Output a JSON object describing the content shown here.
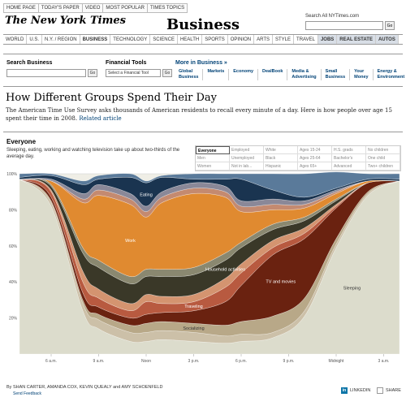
{
  "top_links": [
    "HOME PAGE",
    "TODAY'S PAPER",
    "VIDEO",
    "MOST POPULAR",
    "TIMES TOPICS"
  ],
  "logo": "The New York Times",
  "section": "Business",
  "search_all": {
    "label": "Search All NYTimes.com",
    "go": "Go"
  },
  "nav": [
    {
      "label": "WORLD",
      "style": "normal"
    },
    {
      "label": "U.S.",
      "style": "normal"
    },
    {
      "label": "N.Y. / REGION",
      "style": "normal"
    },
    {
      "label": "BUSINESS",
      "style": "active"
    },
    {
      "label": "TECHNOLOGY",
      "style": "normal"
    },
    {
      "label": "SCIENCE",
      "style": "normal"
    },
    {
      "label": "HEALTH",
      "style": "normal"
    },
    {
      "label": "SPORTS",
      "style": "normal"
    },
    {
      "label": "OPINION",
      "style": "normal"
    },
    {
      "label": "ARTS",
      "style": "normal"
    },
    {
      "label": "STYLE",
      "style": "normal"
    },
    {
      "label": "TRAVEL",
      "style": "normal"
    },
    {
      "label": "JOBS",
      "style": "dark"
    },
    {
      "label": "REAL ESTATE",
      "style": "dark"
    },
    {
      "label": "AUTOS",
      "style": "dark"
    }
  ],
  "subnav": {
    "search_business": "Search Business",
    "search_go": "Go",
    "financial_tools": "Financial Tools",
    "financial_select": "Select a Financial Tool",
    "financial_go": "Go",
    "more_in": "More in Business »",
    "links": [
      [
        "Global",
        "Business"
      ],
      [
        "Markets"
      ],
      [
        "Economy"
      ],
      [
        "DealBook"
      ],
      [
        "Media &",
        "Advertising"
      ],
      [
        "Small",
        "Business"
      ],
      [
        "Your",
        "Money"
      ],
      [
        "Energy &",
        "Environment"
      ]
    ]
  },
  "headline": "How Different Groups Spend Their Day",
  "deck": "The American Time Use Survey asks thousands of American residents to recall every minute of a day. Here is how people over age 15 spent their time in 2008.",
  "deck_link": "Related article",
  "group": {
    "title": "Everyone",
    "description": "Sleeping, eating, working and watching television take up about two-thirds of the average day."
  },
  "filters": [
    "Everyone",
    "Employed",
    "White",
    "Ages 15-24",
    "H.S. grads",
    "No children",
    "Men",
    "Unemployed",
    "Black",
    "Ages 25-64",
    "Bachelor's",
    "One child",
    "Women",
    "Not in lab...",
    "Hispanic",
    "Ages 65+",
    "Advanced",
    "Two+ children"
  ],
  "selected_filter": "Everyone",
  "chart_data": {
    "type": "area",
    "stacked": true,
    "y_ticks": [
      "100%",
      "80%",
      "60%",
      "40%",
      "20%"
    ],
    "x_ticks": [
      "6 a.m.",
      "9 a.m.",
      "Noon",
      "3 p.m.",
      "6 p.m.",
      "9 p.m.",
      "Midnight",
      "3 a.m."
    ],
    "x": [
      4,
      6,
      8,
      9,
      11,
      12,
      13,
      15,
      17,
      18,
      20,
      22,
      24,
      26,
      28
    ],
    "series": [
      {
        "name": "Sleeping",
        "color": "#dcdccc",
        "values": [
          97,
          82,
          24,
          14,
          7,
          7,
          8,
          7,
          6,
          7,
          9,
          21,
          59,
          88,
          96
        ]
      },
      {
        "name": "",
        "color": "#ccc0a8",
        "values": [
          0,
          2,
          4,
          5,
          5,
          5,
          5,
          5,
          4,
          4,
          3,
          3,
          2,
          1,
          0
        ]
      },
      {
        "name": "Socializing",
        "color": "#b8a888",
        "values": [
          0,
          1,
          2,
          3,
          4,
          5,
          5,
          5,
          6,
          7,
          9,
          7,
          3,
          1,
          0
        ]
      },
      {
        "name": "TV and movies",
        "color": "#6a2210",
        "values": [
          0,
          2,
          4,
          4,
          4,
          5,
          5,
          7,
          13,
          20,
          34,
          33,
          17,
          5,
          0
        ]
      },
      {
        "name": "Traveling",
        "color": "#b85a40",
        "values": [
          0,
          3,
          6,
          5,
          4,
          7,
          5,
          5,
          8,
          7,
          4,
          3,
          1,
          0,
          0
        ]
      },
      {
        "name": "",
        "color": "#d49470",
        "values": [
          0,
          1,
          6,
          5,
          4,
          4,
          4,
          4,
          5,
          5,
          4,
          3,
          1,
          0,
          0
        ]
      },
      {
        "name": "Household activities",
        "color": "#3a3828",
        "values": [
          0,
          2,
          10,
          12,
          11,
          10,
          11,
          11,
          10,
          9,
          6,
          4,
          2,
          0,
          0
        ]
      },
      {
        "name": "",
        "color": "#8a8870",
        "values": [
          0,
          1,
          3,
          4,
          4,
          4,
          4,
          4,
          4,
          3,
          3,
          2,
          1,
          0,
          0
        ]
      },
      {
        "name": "Work",
        "color": "#e08a30",
        "values": [
          0,
          2,
          25,
          36,
          40,
          29,
          37,
          41,
          31,
          17,
          8,
          5,
          3,
          1,
          0
        ]
      },
      {
        "name": "",
        "color": "#c48a70",
        "values": [
          0,
          0,
          2,
          3,
          3,
          3,
          3,
          3,
          3,
          3,
          3,
          2,
          1,
          0,
          0
        ]
      },
      {
        "name": "",
        "color": "#8a8898",
        "values": [
          0,
          1,
          3,
          3,
          3,
          3,
          3,
          3,
          3,
          3,
          3,
          2,
          1,
          0,
          0
        ]
      },
      {
        "name": "Eating",
        "color": "#1a3450",
        "values": [
          1,
          2,
          5,
          3,
          9,
          13,
          8,
          2,
          4,
          12,
          5,
          2,
          1,
          1,
          1
        ]
      },
      {
        "name": "",
        "color": "#5a7a9a",
        "values": [
          2,
          1,
          2,
          2,
          2,
          1,
          1,
          3,
          3,
          3,
          9,
          13,
          9,
          3,
          3
        ]
      }
    ]
  },
  "byline": "By SHAN CARTER, AMANDA COX, KEVIN QUEALY and AMY SCHOENFELD",
  "send_feedback": "Send Feedback",
  "linkedin": "LINKEDIN",
  "share": "SHARE"
}
